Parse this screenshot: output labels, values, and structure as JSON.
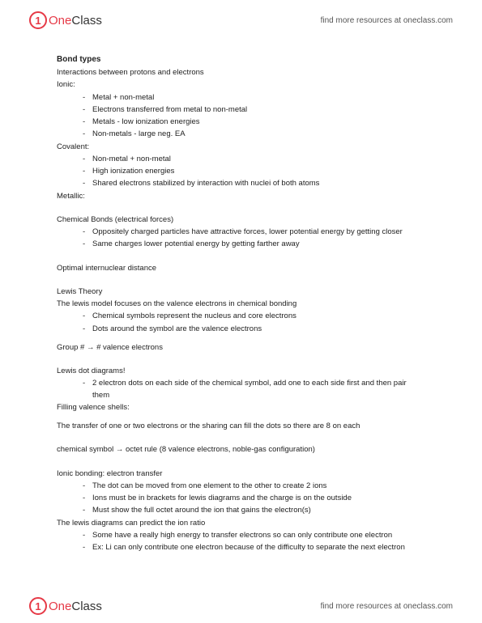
{
  "branding": {
    "logo_one": "One",
    "logo_class": "Class",
    "tagline": "find more resources at oneclass.com"
  },
  "doc": {
    "title": "Bond types",
    "intro": "Interactions between protons and electrons",
    "ionic_label": "Ionic:",
    "ionic_bullets": [
      "Metal + non-metal",
      "Electrons transferred from metal to non-metal",
      "Metals - low ionization energies",
      "Non-metals - large neg. EA"
    ],
    "covalent_label": "Covalent:",
    "covalent_bullets": [
      "Non-metal + non-metal",
      "High ionization energies",
      "Shared electrons stabilized by interaction with nuclei of both atoms"
    ],
    "metallic_label": "Metallic:",
    "chem_bonds_label": "Chemical Bonds (electrical forces)",
    "chem_bonds_bullets": [
      "Oppositely charged particles have attractive forces, lower potential energy by getting closer",
      "Same charges lower potential energy by getting farther away"
    ],
    "optimal": "Optimal internuclear distance",
    "lewis_theory": "Lewis Theory",
    "lewis_intro": "The lewis model focuses on the valence electrons in chemical bonding",
    "lewis_bullets": [
      "Chemical symbols represent the nucleus and core electrons",
      "Dots around the symbol are the valence electrons"
    ],
    "group_line": "Group # → # valence electrons",
    "lewis_dot_label": "Lewis dot diagrams!",
    "lewis_dot_bullets": [
      "2 electron dots on each side of the chemical symbol, add one to each side first and then pair them"
    ],
    "filling_label": "Filling valence shells:",
    "filling_text": "The transfer of one or two electrons or the sharing can fill the dots so there are 8 on each",
    "octet_line": "chemical symbol → octet rule (8 valence electrons, noble-gas configuration)",
    "ionic_bonding_label": "Ionic bonding: electron transfer",
    "ionic_bonding_bullets": [
      "The dot can be moved from one element to the other to create 2 ions",
      "Ions must be in brackets for lewis diagrams and the charge is on the outside",
      "Must show the full octet around the ion that gains the electron(s)"
    ],
    "predict_line": "The lewis diagrams can predict the ion ratio",
    "predict_bullets": [
      "Some have a really high energy to transfer electrons so can only contribute one electron",
      "Ex: Li can only contribute one electron because of the difficulty to separate the next electron"
    ]
  }
}
